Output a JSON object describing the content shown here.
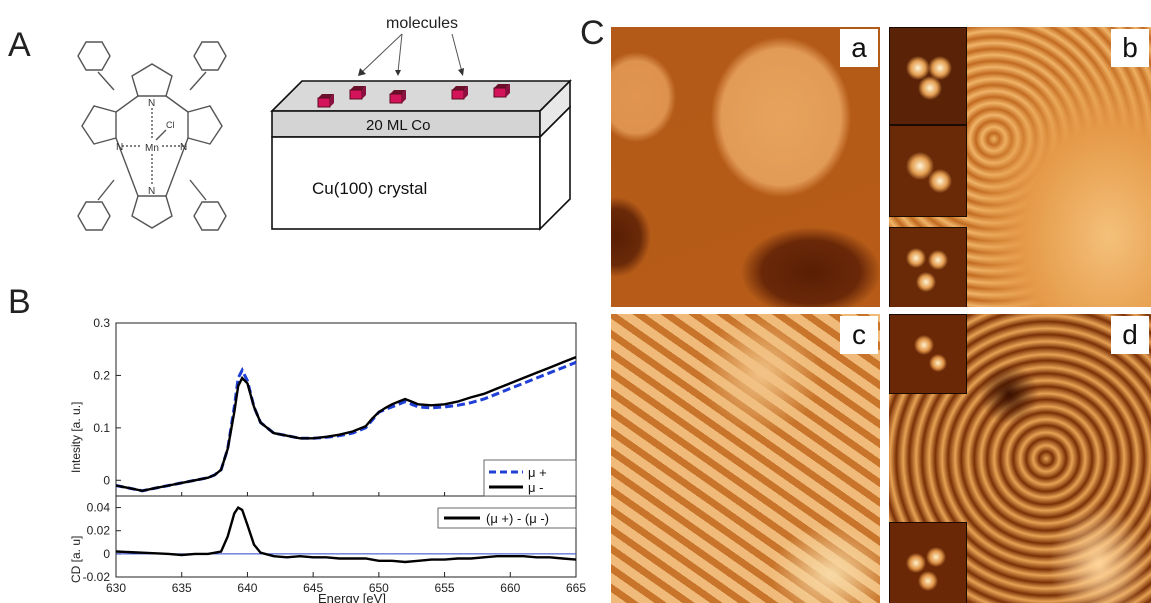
{
  "panels": {
    "a": "A",
    "b": "B",
    "c": "C"
  },
  "molecule": {
    "center_atom": "Mn",
    "ligand": "Cl",
    "n": "N"
  },
  "schematic": {
    "molecules_label": "molecules",
    "film_label": "20 ML Co",
    "crystal_label": "Cu(100) crystal"
  },
  "stm_labels": [
    "a",
    "b",
    "c",
    "d"
  ],
  "colors": {
    "mu_plus": "#1f3fd6",
    "mu_minus": "#000000",
    "zero_line": "#2a45c8",
    "stm_dark": "#3a1400",
    "stm_mid": "#c86414",
    "stm_light": "#f6c784"
  },
  "chart_data": [
    {
      "type": "line",
      "title": "",
      "xlabel": "",
      "ylabel": "Intesity [a. u.]",
      "xlim": [
        630,
        665
      ],
      "ylim": [
        -0.03,
        0.3
      ],
      "yticks": [
        "0.3",
        "0.2",
        "0.1",
        "0"
      ],
      "ytick_values": [
        0.3,
        0.2,
        0.1,
        0
      ],
      "series": [
        {
          "name": "μ +",
          "style": "dashed",
          "x": [
            630,
            631,
            632,
            633,
            634,
            635,
            636,
            637,
            637.5,
            638,
            638.5,
            639,
            639.3,
            639.6,
            640,
            640.5,
            641,
            641.5,
            642,
            643,
            644,
            645,
            646,
            647,
            648,
            649,
            649.5,
            650,
            650.5,
            651,
            651.5,
            652,
            652.5,
            653,
            654,
            655,
            656,
            657,
            658,
            659,
            660,
            661,
            662,
            663,
            664,
            665
          ],
          "y": [
            -0.01,
            -0.015,
            -0.02,
            -0.015,
            -0.01,
            -0.005,
            0.0,
            0.005,
            0.01,
            0.02,
            0.06,
            0.14,
            0.195,
            0.21,
            0.19,
            0.14,
            0.11,
            0.1,
            0.09,
            0.085,
            0.08,
            0.08,
            0.082,
            0.085,
            0.09,
            0.1,
            0.115,
            0.13,
            0.135,
            0.14,
            0.145,
            0.15,
            0.145,
            0.14,
            0.138,
            0.14,
            0.143,
            0.148,
            0.155,
            0.165,
            0.175,
            0.185,
            0.195,
            0.205,
            0.215,
            0.225
          ]
        },
        {
          "name": "μ -",
          "style": "solid",
          "x": [
            630,
            631,
            632,
            633,
            634,
            635,
            636,
            637,
            637.5,
            638,
            638.5,
            639,
            639.3,
            639.6,
            640,
            640.5,
            641,
            641.5,
            642,
            643,
            644,
            645,
            646,
            647,
            648,
            649,
            649.5,
            650,
            650.5,
            651,
            651.5,
            652,
            652.5,
            653,
            654,
            655,
            656,
            657,
            658,
            659,
            660,
            661,
            662,
            663,
            664,
            665
          ],
          "y": [
            -0.01,
            -0.015,
            -0.02,
            -0.015,
            -0.01,
            -0.005,
            0.0,
            0.005,
            0.01,
            0.02,
            0.06,
            0.13,
            0.18,
            0.195,
            0.185,
            0.14,
            0.11,
            0.1,
            0.09,
            0.085,
            0.08,
            0.08,
            0.083,
            0.087,
            0.093,
            0.103,
            0.118,
            0.13,
            0.138,
            0.145,
            0.15,
            0.155,
            0.15,
            0.145,
            0.143,
            0.145,
            0.15,
            0.158,
            0.165,
            0.175,
            0.185,
            0.195,
            0.205,
            0.215,
            0.225,
            0.235
          ]
        }
      ]
    },
    {
      "type": "line",
      "title": "",
      "xlabel": "Energy [eV]",
      "ylabel": "CD [a. u]",
      "xlim": [
        630,
        665
      ],
      "ylim": [
        -0.02,
        0.05
      ],
      "xticks": [
        "630",
        "635",
        "640",
        "645",
        "650",
        "655",
        "660",
        "665"
      ],
      "xtick_values": [
        630,
        635,
        640,
        645,
        650,
        655,
        660,
        665
      ],
      "yticks": [
        "0.04",
        "0.02",
        "0",
        "-0.02"
      ],
      "ytick_values": [
        0.04,
        0.02,
        0,
        -0.02
      ],
      "series": [
        {
          "name": "(μ +) - (μ -)",
          "style": "solid",
          "x": [
            630,
            632,
            634,
            635,
            636,
            637,
            638,
            638.5,
            639,
            639.3,
            639.6,
            640,
            640.5,
            641,
            642,
            643,
            644,
            645,
            646,
            647,
            648,
            649,
            650,
            651,
            652,
            653,
            654,
            655,
            656,
            657,
            658,
            659,
            660,
            661,
            662,
            663,
            664,
            665
          ],
          "y": [
            0.002,
            0.001,
            0.0,
            -0.001,
            0.0,
            0.0,
            0.002,
            0.015,
            0.035,
            0.04,
            0.038,
            0.025,
            0.008,
            0.001,
            -0.002,
            -0.003,
            -0.002,
            -0.003,
            -0.003,
            -0.004,
            -0.004,
            -0.004,
            -0.006,
            -0.006,
            -0.007,
            -0.006,
            -0.005,
            -0.005,
            -0.004,
            -0.004,
            -0.003,
            -0.002,
            -0.002,
            -0.002,
            -0.003,
            -0.003,
            -0.004,
            -0.005
          ]
        }
      ]
    }
  ]
}
